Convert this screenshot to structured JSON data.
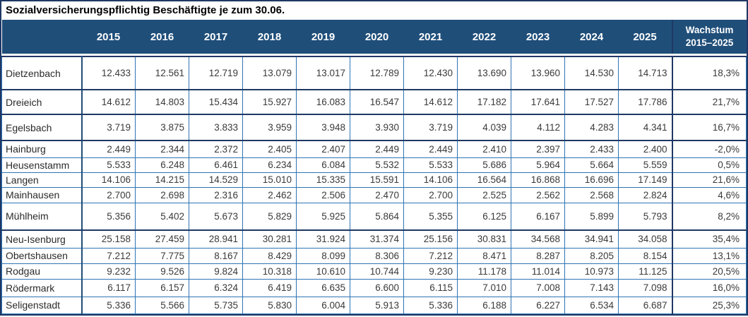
{
  "title": "Sozialversicherungspflichtig Beschäftigte je zum 30.06.",
  "header": {
    "years": [
      "2015",
      "2016",
      "2017",
      "2018",
      "2019",
      "2020",
      "2021",
      "2022",
      "2023",
      "2024",
      "2025"
    ],
    "growth": {
      "line1": "Wachstum",
      "line2": "2015–2025"
    }
  },
  "rows": [
    {
      "name": "Dietzenbach",
      "values": [
        "12.433",
        "12.561",
        "12.719",
        "13.079",
        "13.017",
        "12.789",
        "12.430",
        "13.690",
        "13.960",
        "14.530",
        "14.713"
      ],
      "growth": "18,3%"
    },
    {
      "name": "Dreieich",
      "values": [
        "14.612",
        "14.803",
        "15.434",
        "15.927",
        "16.083",
        "16.547",
        "14.612",
        "17.182",
        "17.641",
        "17.527",
        "17.786"
      ],
      "growth": "21,7%"
    },
    {
      "name": "Egelsbach",
      "values": [
        "3.719",
        "3.875",
        "3.833",
        "3.959",
        "3.948",
        "3.930",
        "3.719",
        "4.039",
        "4.112",
        "4.283",
        "4.341"
      ],
      "growth": "16,7%"
    },
    {
      "name": "Hainburg",
      "values": [
        "2.449",
        "2.344",
        "2.372",
        "2.405",
        "2.407",
        "2.449",
        "2.449",
        "2.410",
        "2.397",
        "2.433",
        "2.400"
      ],
      "growth": "-2,0%"
    },
    {
      "name": "Heusenstamm",
      "values": [
        "5.533",
        "6.248",
        "6.461",
        "6.234",
        "6.084",
        "5.532",
        "5.533",
        "5.686",
        "5.964",
        "5.664",
        "5.559"
      ],
      "growth": "0,5%"
    },
    {
      "name": "Langen",
      "values": [
        "14.106",
        "14.215",
        "14.529",
        "15.010",
        "15.335",
        "15.591",
        "14.106",
        "16.564",
        "16.868",
        "16.696",
        "17.149"
      ],
      "growth": "21,6%"
    },
    {
      "name": "Mainhausen",
      "values": [
        "2.700",
        "2.698",
        "2.316",
        "2.462",
        "2.506",
        "2.470",
        "2.700",
        "2.525",
        "2.562",
        "2.568",
        "2.824"
      ],
      "growth": "4,6%"
    },
    {
      "name": "Mühlheim",
      "values": [
        "5.356",
        "5.402",
        "5.673",
        "5.829",
        "5.925",
        "5.864",
        "5.355",
        "6.125",
        "6.167",
        "5.899",
        "5.793"
      ],
      "growth": "8,2%"
    },
    {
      "name": "Neu-Isenburg",
      "values": [
        "25.158",
        "27.459",
        "28.941",
        "30.281",
        "31.924",
        "31.374",
        "25.156",
        "30.831",
        "34.568",
        "34.941",
        "34.058"
      ],
      "growth": "35,4%"
    },
    {
      "name": "Obertshausen",
      "values": [
        "7.212",
        "7.775",
        "8.167",
        "8.429",
        "8.099",
        "8.306",
        "7.212",
        "8.471",
        "8.287",
        "8.205",
        "8.154"
      ],
      "growth": "13,1%"
    },
    {
      "name": "Rodgau",
      "values": [
        "9.232",
        "9.526",
        "9.824",
        "10.318",
        "10.610",
        "10.744",
        "9.230",
        "11.178",
        "11.014",
        "10.973",
        "11.125"
      ],
      "growth": "20,5%"
    },
    {
      "name": "Rödermark",
      "values": [
        "6.117",
        "6.157",
        "6.324",
        "6.419",
        "6.635",
        "6.600",
        "6.115",
        "7.010",
        "7.008",
        "7.143",
        "7.098"
      ],
      "growth": "16,0%"
    },
    {
      "name": "Seligenstadt",
      "values": [
        "5.336",
        "5.566",
        "5.735",
        "5.830",
        "6.004",
        "5.913",
        "5.336",
        "6.188",
        "6.227",
        "6.534",
        "6.687"
      ],
      "growth": "25,3%"
    }
  ],
  "colors": {
    "header_background": "#1F4E79",
    "outer_border": "#1F3864",
    "inner_border": "#2E74B5",
    "header_text": "#FFFFFF",
    "body_text": "#3A3A3A"
  },
  "chart_data": {
    "type": "table",
    "title": "Sozialversicherungspflichtig Beschäftigte je zum 30.06.",
    "columns": [
      "",
      "2015",
      "2016",
      "2017",
      "2018",
      "2019",
      "2020",
      "2021",
      "2022",
      "2023",
      "2024",
      "2025",
      "Wachstum 2015–2025"
    ],
    "x": [
      2015,
      2016,
      2017,
      2018,
      2019,
      2020,
      2021,
      2022,
      2023,
      2024,
      2025
    ],
    "series": [
      {
        "name": "Dietzenbach",
        "values": [
          12433,
          12561,
          12719,
          13079,
          13017,
          12789,
          12430,
          13690,
          13960,
          14530,
          14713
        ],
        "growth_percent": 18.3
      },
      {
        "name": "Dreieich",
        "values": [
          14612,
          14803,
          15434,
          15927,
          16083,
          16547,
          14612,
          17182,
          17641,
          17527,
          17786
        ],
        "growth_percent": 21.7
      },
      {
        "name": "Egelsbach",
        "values": [
          3719,
          3875,
          3833,
          3959,
          3948,
          3930,
          3719,
          4039,
          4112,
          4283,
          4341
        ],
        "growth_percent": 16.7
      },
      {
        "name": "Hainburg",
        "values": [
          2449,
          2344,
          2372,
          2405,
          2407,
          2449,
          2449,
          2410,
          2397,
          2433,
          2400
        ],
        "growth_percent": -2.0
      },
      {
        "name": "Heusenstamm",
        "values": [
          5533,
          6248,
          6461,
          6234,
          6084,
          5532,
          5533,
          5686,
          5964,
          5664,
          5559
        ],
        "growth_percent": 0.5
      },
      {
        "name": "Langen",
        "values": [
          14106,
          14215,
          14529,
          15010,
          15335,
          15591,
          14106,
          16564,
          16868,
          16696,
          17149
        ],
        "growth_percent": 21.6
      },
      {
        "name": "Mainhausen",
        "values": [
          2700,
          2698,
          2316,
          2462,
          2506,
          2470,
          2700,
          2525,
          2562,
          2568,
          2824
        ],
        "growth_percent": 4.6
      },
      {
        "name": "Mühlheim",
        "values": [
          5356,
          5402,
          5673,
          5829,
          5925,
          5864,
          5355,
          6125,
          6167,
          5899,
          5793
        ],
        "growth_percent": 8.2
      },
      {
        "name": "Neu-Isenburg",
        "values": [
          25158,
          27459,
          28941,
          30281,
          31924,
          31374,
          25156,
          30831,
          34568,
          34941,
          34058
        ],
        "growth_percent": 35.4
      },
      {
        "name": "Obertshausen",
        "values": [
          7212,
          7775,
          8167,
          8429,
          8099,
          8306,
          7212,
          8471,
          8287,
          8205,
          8154
        ],
        "growth_percent": 13.1
      },
      {
        "name": "Rodgau",
        "values": [
          9232,
          9526,
          9824,
          10318,
          10610,
          10744,
          9230,
          11178,
          11014,
          10973,
          11125
        ],
        "growth_percent": 20.5
      },
      {
        "name": "Rödermark",
        "values": [
          6117,
          6157,
          6324,
          6419,
          6635,
          6600,
          6115,
          7010,
          7008,
          7143,
          7098
        ],
        "growth_percent": 16.0
      },
      {
        "name": "Seligenstadt",
        "values": [
          5336,
          5566,
          5735,
          5830,
          6004,
          5913,
          5336,
          6188,
          6227,
          6534,
          6687
        ],
        "growth_percent": 25.3
      }
    ]
  }
}
